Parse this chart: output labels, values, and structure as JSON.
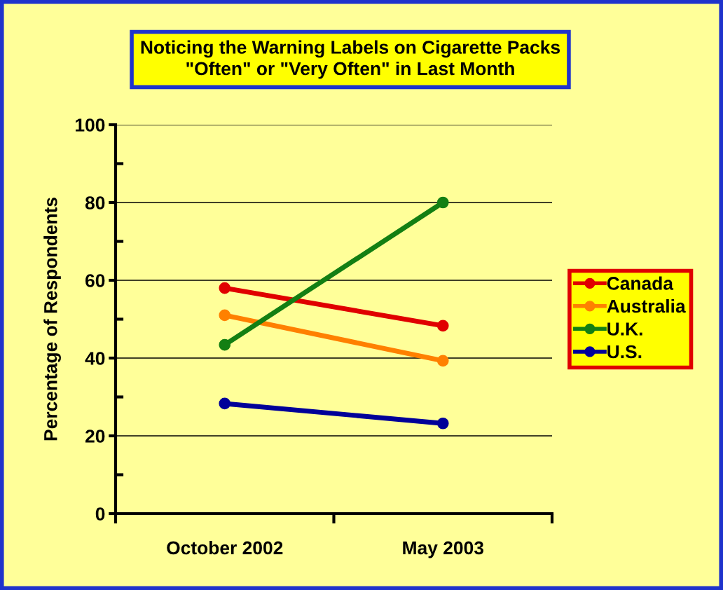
{
  "chart_data": {
    "type": "line",
    "title": "Noticing the Warning Labels on Cigarette Packs\n\"Often\" or \"Very Often\" in Last Month",
    "ylabel": "Percentage of Respondents",
    "categories": [
      "October 2002",
      "May 2003"
    ],
    "series": [
      {
        "name": "Canada",
        "color": "#e00000",
        "values": [
          58,
          48.3
        ]
      },
      {
        "name": "Australia",
        "color": "#ff8000",
        "values": [
          51,
          39.3
        ]
      },
      {
        "name": "U.K.",
        "color": "#137f13",
        "values": [
          43.4,
          80
        ]
      },
      {
        "name": "U.S.",
        "color": "#000099",
        "values": [
          28.3,
          23.2
        ]
      }
    ],
    "ylim": [
      0,
      100
    ],
    "yticks": [
      0,
      {
        "value": 10,
        "label": null
      },
      20,
      {
        "value": 30,
        "label": null
      },
      40,
      {
        "value": 50,
        "label": null
      },
      60,
      {
        "value": 70,
        "label": null
      },
      80,
      {
        "value": 90,
        "label": null
      },
      100
    ],
    "grid": "y",
    "legend": "right",
    "marker": "circle",
    "line_style": "solid"
  }
}
